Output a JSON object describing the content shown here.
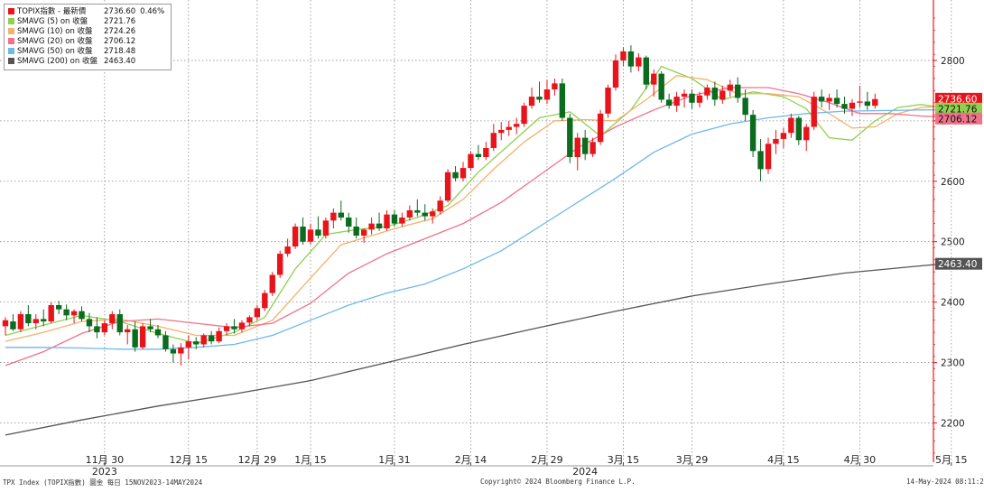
{
  "footer": {
    "left": "TPX Index (TOPIX指數) 圖金  每日 15NOV2023-14MAY2024",
    "center": "Copyright© 2024 Bloomberg Finance L.P.",
    "right": "14-May-2024 08:11:21"
  },
  "legend": [
    {
      "name": "TOPIX指數 - 最新價",
      "value": "2736.60",
      "change": "0.46%",
      "color": "#e8141b"
    },
    {
      "name": "SMAVG (5)  on 收盤",
      "value": "2721.76",
      "color": "#8fd14f"
    },
    {
      "name": "SMAVG (10)  on 收盤",
      "value": "2724.26",
      "color": "#f5b06b"
    },
    {
      "name": "SMAVG (20)  on 收盤",
      "value": "2706.12",
      "color": "#f0728a"
    },
    {
      "name": "SMAVG (50)  on 收盤",
      "value": "2718.48",
      "color": "#6db8ec"
    },
    {
      "name": "SMAVG (200)  on 收盤",
      "value": "2463.40",
      "color": "#555555"
    }
  ],
  "chart_data": {
    "type": "candlestick",
    "y_ticks": [
      "2200",
      "2300",
      "2400",
      "2500",
      "2600",
      "2700",
      "2800"
    ],
    "ylim": [
      2135,
      2900
    ],
    "x_tick_labels": [
      "11月 30",
      "12月 15",
      "12月 29",
      "1月 15",
      "1月 31",
      "2月 14",
      "2月 29",
      "3月 15",
      "3月 29",
      "4月 15",
      "4月 30",
      "5月 15"
    ],
    "x_tick_index": [
      13,
      24,
      33,
      40,
      51,
      61,
      71,
      81,
      90,
      102,
      112,
      124
    ],
    "year_labels": [
      {
        "text": "2023",
        "index": 13
      },
      {
        "text": "2024",
        "index": 76
      }
    ],
    "last_value_labels": [
      {
        "text": "2736.60",
        "value": 2736.6,
        "bg": "#e8141b",
        "fg": "#ffffff"
      },
      {
        "text": "2721.76",
        "value": 2721.76,
        "bg": "#8fd14f",
        "fg": "#111111"
      },
      {
        "text": "2706.12",
        "value": 2706.12,
        "bg": "#f0728a",
        "fg": "#111111"
      },
      {
        "text": "2463.40",
        "value": 2463.4,
        "bg": "#555555",
        "fg": "#ffffff"
      }
    ],
    "ohlc": [
      [
        2360,
        2375,
        2345,
        2370
      ],
      [
        2368,
        2380,
        2352,
        2355
      ],
      [
        2355,
        2385,
        2350,
        2380
      ],
      [
        2380,
        2395,
        2360,
        2365
      ],
      [
        2365,
        2380,
        2355,
        2372
      ],
      [
        2372,
        2388,
        2360,
        2368
      ],
      [
        2368,
        2400,
        2365,
        2395
      ],
      [
        2395,
        2402,
        2380,
        2388
      ],
      [
        2388,
        2396,
        2370,
        2378
      ],
      [
        2378,
        2388,
        2365,
        2385
      ],
      [
        2385,
        2393,
        2368,
        2372
      ],
      [
        2372,
        2382,
        2350,
        2360
      ],
      [
        2360,
        2375,
        2340,
        2350
      ],
      [
        2350,
        2370,
        2345,
        2365
      ],
      [
        2365,
        2385,
        2355,
        2380
      ],
      [
        2380,
        2388,
        2345,
        2350
      ],
      [
        2350,
        2362,
        2330,
        2355
      ],
      [
        2355,
        2368,
        2318,
        2325
      ],
      [
        2325,
        2365,
        2322,
        2360
      ],
      [
        2360,
        2372,
        2350,
        2355
      ],
      [
        2355,
        2362,
        2340,
        2345
      ],
      [
        2345,
        2352,
        2318,
        2322
      ],
      [
        2322,
        2330,
        2300,
        2315
      ],
      [
        2315,
        2332,
        2295,
        2325
      ],
      [
        2325,
        2345,
        2305,
        2335
      ],
      [
        2335,
        2342,
        2322,
        2330
      ],
      [
        2330,
        2348,
        2325,
        2345
      ],
      [
        2345,
        2352,
        2330,
        2335
      ],
      [
        2335,
        2358,
        2332,
        2352
      ],
      [
        2352,
        2365,
        2345,
        2360
      ],
      [
        2360,
        2372,
        2348,
        2355
      ],
      [
        2355,
        2370,
        2350,
        2366
      ],
      [
        2366,
        2378,
        2360,
        2375
      ],
      [
        2375,
        2395,
        2370,
        2390
      ],
      [
        2390,
        2420,
        2385,
        2415
      ],
      [
        2415,
        2450,
        2410,
        2445
      ],
      [
        2445,
        2485,
        2440,
        2480
      ],
      [
        2480,
        2505,
        2475,
        2492
      ],
      [
        2492,
        2530,
        2488,
        2525
      ],
      [
        2525,
        2540,
        2495,
        2500
      ],
      [
        2500,
        2530,
        2495,
        2520
      ],
      [
        2520,
        2542,
        2505,
        2510
      ],
      [
        2510,
        2540,
        2505,
        2535
      ],
      [
        2535,
        2555,
        2522,
        2548
      ],
      [
        2548,
        2568,
        2535,
        2540
      ],
      [
        2540,
        2548,
        2515,
        2525
      ],
      [
        2525,
        2540,
        2505,
        2510
      ],
      [
        2510,
        2522,
        2498,
        2520
      ],
      [
        2520,
        2540,
        2512,
        2530
      ],
      [
        2530,
        2548,
        2518,
        2522
      ],
      [
        2522,
        2552,
        2518,
        2545
      ],
      [
        2545,
        2552,
        2525,
        2530
      ],
      [
        2530,
        2548,
        2525,
        2540
      ],
      [
        2540,
        2560,
        2535,
        2552
      ],
      [
        2552,
        2570,
        2542,
        2548
      ],
      [
        2548,
        2562,
        2535,
        2542
      ],
      [
        2542,
        2555,
        2530,
        2550
      ],
      [
        2550,
        2575,
        2545,
        2568
      ],
      [
        2568,
        2620,
        2565,
        2615
      ],
      [
        2615,
        2625,
        2600,
        2605
      ],
      [
        2605,
        2632,
        2600,
        2622
      ],
      [
        2622,
        2650,
        2618,
        2645
      ],
      [
        2645,
        2660,
        2635,
        2640
      ],
      [
        2640,
        2665,
        2635,
        2655
      ],
      [
        2655,
        2695,
        2650,
        2680
      ],
      [
        2680,
        2698,
        2668,
        2685
      ],
      [
        2685,
        2700,
        2675,
        2690
      ],
      [
        2690,
        2705,
        2678,
        2695
      ],
      [
        2695,
        2730,
        2690,
        2725
      ],
      [
        2725,
        2755,
        2720,
        2740
      ],
      [
        2740,
        2765,
        2730,
        2735
      ],
      [
        2735,
        2768,
        2728,
        2752
      ],
      [
        2752,
        2770,
        2742,
        2762
      ],
      [
        2762,
        2770,
        2700,
        2705
      ],
      [
        2705,
        2712,
        2630,
        2640
      ],
      [
        2640,
        2680,
        2618,
        2672
      ],
      [
        2672,
        2685,
        2635,
        2645
      ],
      [
        2645,
        2672,
        2640,
        2665
      ],
      [
        2665,
        2718,
        2660,
        2712
      ],
      [
        2712,
        2760,
        2705,
        2755
      ],
      [
        2755,
        2810,
        2750,
        2800
      ],
      [
        2800,
        2822,
        2790,
        2815
      ],
      [
        2815,
        2825,
        2780,
        2790
      ],
      [
        2790,
        2812,
        2782,
        2805
      ],
      [
        2805,
        2808,
        2752,
        2760
      ],
      [
        2760,
        2785,
        2740,
        2778
      ],
      [
        2778,
        2782,
        2730,
        2735
      ],
      [
        2735,
        2745,
        2720,
        2725
      ],
      [
        2725,
        2748,
        2715,
        2740
      ],
      [
        2740,
        2752,
        2722,
        2745
      ],
      [
        2745,
        2752,
        2720,
        2730
      ],
      [
        2730,
        2748,
        2722,
        2742
      ],
      [
        2742,
        2760,
        2735,
        2755
      ],
      [
        2755,
        2765,
        2725,
        2735
      ],
      [
        2735,
        2758,
        2728,
        2750
      ],
      [
        2750,
        2768,
        2740,
        2760
      ],
      [
        2760,
        2772,
        2730,
        2738
      ],
      [
        2738,
        2752,
        2700,
        2710
      ],
      [
        2710,
        2718,
        2640,
        2650
      ],
      [
        2650,
        2670,
        2600,
        2620
      ],
      [
        2620,
        2672,
        2612,
        2662
      ],
      [
        2662,
        2685,
        2645,
        2670
      ],
      [
        2670,
        2688,
        2655,
        2680
      ],
      [
        2680,
        2712,
        2672,
        2705
      ],
      [
        2705,
        2708,
        2660,
        2668
      ],
      [
        2668,
        2695,
        2650,
        2690
      ],
      [
        2690,
        2748,
        2685,
        2740
      ],
      [
        2740,
        2752,
        2722,
        2732
      ],
      [
        2732,
        2745,
        2718,
        2738
      ],
      [
        2738,
        2752,
        2722,
        2728
      ],
      [
        2728,
        2740,
        2712,
        2720
      ],
      [
        2720,
        2736,
        2708,
        2730
      ],
      [
        2730,
        2758,
        2722,
        2732
      ],
      [
        2732,
        2748,
        2718,
        2725
      ],
      [
        2725,
        2745,
        2720,
        2736
      ]
    ],
    "ohlc_start_index": 0,
    "series": [
      {
        "name": "SMAVG (5)",
        "color": "#8fd14f",
        "points": [
          [
            0,
            2345
          ],
          [
            5,
            2362
          ],
          [
            10,
            2378
          ],
          [
            15,
            2368
          ],
          [
            20,
            2348
          ],
          [
            25,
            2332
          ],
          [
            30,
            2350
          ],
          [
            34,
            2375
          ],
          [
            38,
            2455
          ],
          [
            42,
            2512
          ],
          [
            46,
            2520
          ],
          [
            50,
            2525
          ],
          [
            54,
            2540
          ],
          [
            58,
            2560
          ],
          [
            62,
            2615
          ],
          [
            66,
            2660
          ],
          [
            70,
            2705
          ],
          [
            74,
            2715
          ],
          [
            78,
            2675
          ],
          [
            82,
            2718
          ],
          [
            86,
            2790
          ],
          [
            90,
            2770
          ],
          [
            94,
            2735
          ],
          [
            98,
            2748
          ],
          [
            102,
            2740
          ],
          [
            105,
            2720
          ],
          [
            108,
            2672
          ],
          [
            111,
            2668
          ],
          [
            114,
            2700
          ],
          [
            117,
            2722
          ],
          [
            120,
            2727
          ],
          [
            123,
            2721.76
          ]
        ]
      },
      {
        "name": "SMAVG (10)",
        "color": "#f5b06b",
        "points": [
          [
            0,
            2335
          ],
          [
            5,
            2350
          ],
          [
            10,
            2368
          ],
          [
            15,
            2372
          ],
          [
            20,
            2360
          ],
          [
            25,
            2345
          ],
          [
            30,
            2345
          ],
          [
            35,
            2370
          ],
          [
            40,
            2440
          ],
          [
            44,
            2495
          ],
          [
            48,
            2510
          ],
          [
            52,
            2525
          ],
          [
            56,
            2538
          ],
          [
            60,
            2570
          ],
          [
            64,
            2620
          ],
          [
            68,
            2665
          ],
          [
            72,
            2700
          ],
          [
            76,
            2702
          ],
          [
            80,
            2700
          ],
          [
            84,
            2735
          ],
          [
            88,
            2775
          ],
          [
            92,
            2768
          ],
          [
            96,
            2745
          ],
          [
            100,
            2745
          ],
          [
            104,
            2740
          ],
          [
            108,
            2712
          ],
          [
            111,
            2688
          ],
          [
            114,
            2690
          ],
          [
            117,
            2712
          ],
          [
            120,
            2722
          ],
          [
            123,
            2724.26
          ]
        ]
      },
      {
        "name": "SMAVG (20)",
        "color": "#f0728a",
        "points": [
          [
            0,
            2295
          ],
          [
            5,
            2318
          ],
          [
            10,
            2348
          ],
          [
            15,
            2368
          ],
          [
            20,
            2372
          ],
          [
            25,
            2365
          ],
          [
            30,
            2358
          ],
          [
            35,
            2365
          ],
          [
            40,
            2398
          ],
          [
            45,
            2448
          ],
          [
            50,
            2480
          ],
          [
            55,
            2505
          ],
          [
            60,
            2530
          ],
          [
            65,
            2565
          ],
          [
            70,
            2610
          ],
          [
            75,
            2655
          ],
          [
            80,
            2690
          ],
          [
            85,
            2718
          ],
          [
            90,
            2742
          ],
          [
            95,
            2755
          ],
          [
            100,
            2755
          ],
          [
            104,
            2745
          ],
          [
            108,
            2730
          ],
          [
            112,
            2712
          ],
          [
            116,
            2712
          ],
          [
            120,
            2708
          ],
          [
            123,
            2706.12
          ]
        ]
      },
      {
        "name": "SMAVG (50)",
        "color": "#6db8ec",
        "points": [
          [
            0,
            2325
          ],
          [
            5,
            2325
          ],
          [
            10,
            2324
          ],
          [
            15,
            2322
          ],
          [
            20,
            2322
          ],
          [
            25,
            2325
          ],
          [
            30,
            2330
          ],
          [
            35,
            2345
          ],
          [
            40,
            2370
          ],
          [
            45,
            2395
          ],
          [
            50,
            2415
          ],
          [
            55,
            2430
          ],
          [
            60,
            2455
          ],
          [
            65,
            2485
          ],
          [
            70,
            2525
          ],
          [
            75,
            2565
          ],
          [
            80,
            2605
          ],
          [
            85,
            2648
          ],
          [
            90,
            2678
          ],
          [
            95,
            2695
          ],
          [
            100,
            2705
          ],
          [
            105,
            2712
          ],
          [
            110,
            2716
          ],
          [
            115,
            2717
          ],
          [
            120,
            2718
          ],
          [
            123,
            2718.48
          ]
        ]
      },
      {
        "name": "SMAVG (200)",
        "color": "#555555",
        "points": [
          [
            0,
            2180
          ],
          [
            10,
            2205
          ],
          [
            20,
            2228
          ],
          [
            30,
            2248
          ],
          [
            40,
            2270
          ],
          [
            50,
            2300
          ],
          [
            60,
            2330
          ],
          [
            70,
            2358
          ],
          [
            80,
            2385
          ],
          [
            90,
            2410
          ],
          [
            100,
            2430
          ],
          [
            110,
            2448
          ],
          [
            120,
            2460
          ],
          [
            123,
            2463.4
          ]
        ]
      }
    ]
  }
}
